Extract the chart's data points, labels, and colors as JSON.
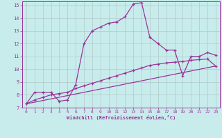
{
  "xlabel": "Windchill (Refroidissement éolien,°C)",
  "bg_color": "#c8ecec",
  "grid_color": "#b0c8c8",
  "line_color": "#993399",
  "xlim": [
    -0.5,
    23.5
  ],
  "ylim": [
    7,
    15.3
  ],
  "yticks": [
    7,
    8,
    9,
    10,
    11,
    12,
    13,
    14,
    15
  ],
  "xticks": [
    0,
    1,
    2,
    3,
    4,
    5,
    6,
    7,
    8,
    9,
    10,
    11,
    12,
    13,
    14,
    15,
    16,
    17,
    18,
    19,
    20,
    21,
    22,
    23
  ],
  "curve1_x": [
    0,
    1,
    2,
    3,
    4,
    5,
    6,
    7,
    8,
    9,
    10,
    11,
    12,
    13,
    14,
    15,
    16,
    17,
    18,
    19,
    20,
    21,
    22,
    23
  ],
  "curve1_y": [
    7.3,
    8.2,
    8.2,
    8.2,
    7.5,
    7.6,
    8.8,
    12.0,
    13.0,
    13.3,
    13.6,
    13.7,
    14.1,
    15.1,
    15.2,
    12.5,
    12.0,
    11.5,
    11.5,
    9.5,
    11.0,
    11.0,
    11.3,
    11.1
  ],
  "curve2_x": [
    0,
    1,
    2,
    3,
    4,
    5,
    6,
    7,
    8,
    9,
    10,
    11,
    12,
    13,
    14,
    15,
    16,
    17,
    18,
    19,
    20,
    21,
    22,
    23
  ],
  "curve2_y": [
    7.3,
    7.6,
    7.8,
    8.0,
    8.1,
    8.2,
    8.5,
    8.7,
    8.9,
    9.1,
    9.3,
    9.5,
    9.7,
    9.9,
    10.1,
    10.3,
    10.4,
    10.5,
    10.55,
    10.6,
    10.7,
    10.75,
    10.8,
    10.25
  ],
  "curve3_x": [
    0,
    23
  ],
  "curve3_y": [
    7.3,
    10.25
  ]
}
